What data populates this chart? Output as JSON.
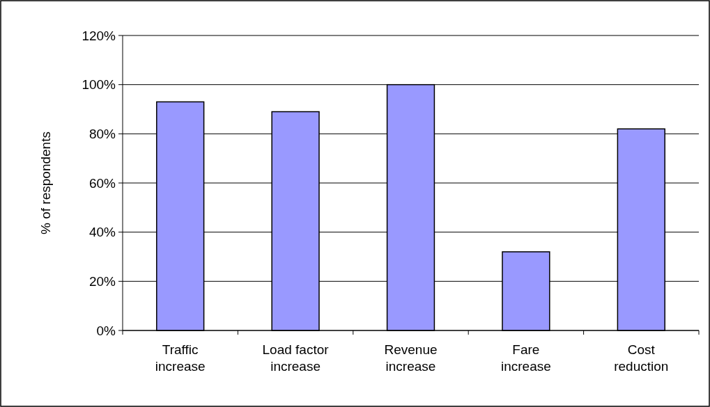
{
  "chart_data": {
    "type": "bar",
    "ylabel": "% of respondents",
    "categories": [
      "Traffic increase",
      "Load factor increase",
      "Revenue increase",
      "Fare increase",
      "Cost reduction"
    ],
    "values": [
      93,
      89,
      100,
      32,
      82
    ],
    "color": "#9999ff",
    "ylim": [
      0,
      120
    ],
    "yticks": [
      {
        "value": 0,
        "label": "0%"
      },
      {
        "value": 20,
        "label": "20%"
      },
      {
        "value": 40,
        "label": "40%"
      },
      {
        "value": 60,
        "label": "60%"
      },
      {
        "value": 80,
        "label": "80%"
      },
      {
        "value": 100,
        "label": "100%"
      },
      {
        "value": 120,
        "label": "120%"
      }
    ],
    "grid": "y"
  }
}
